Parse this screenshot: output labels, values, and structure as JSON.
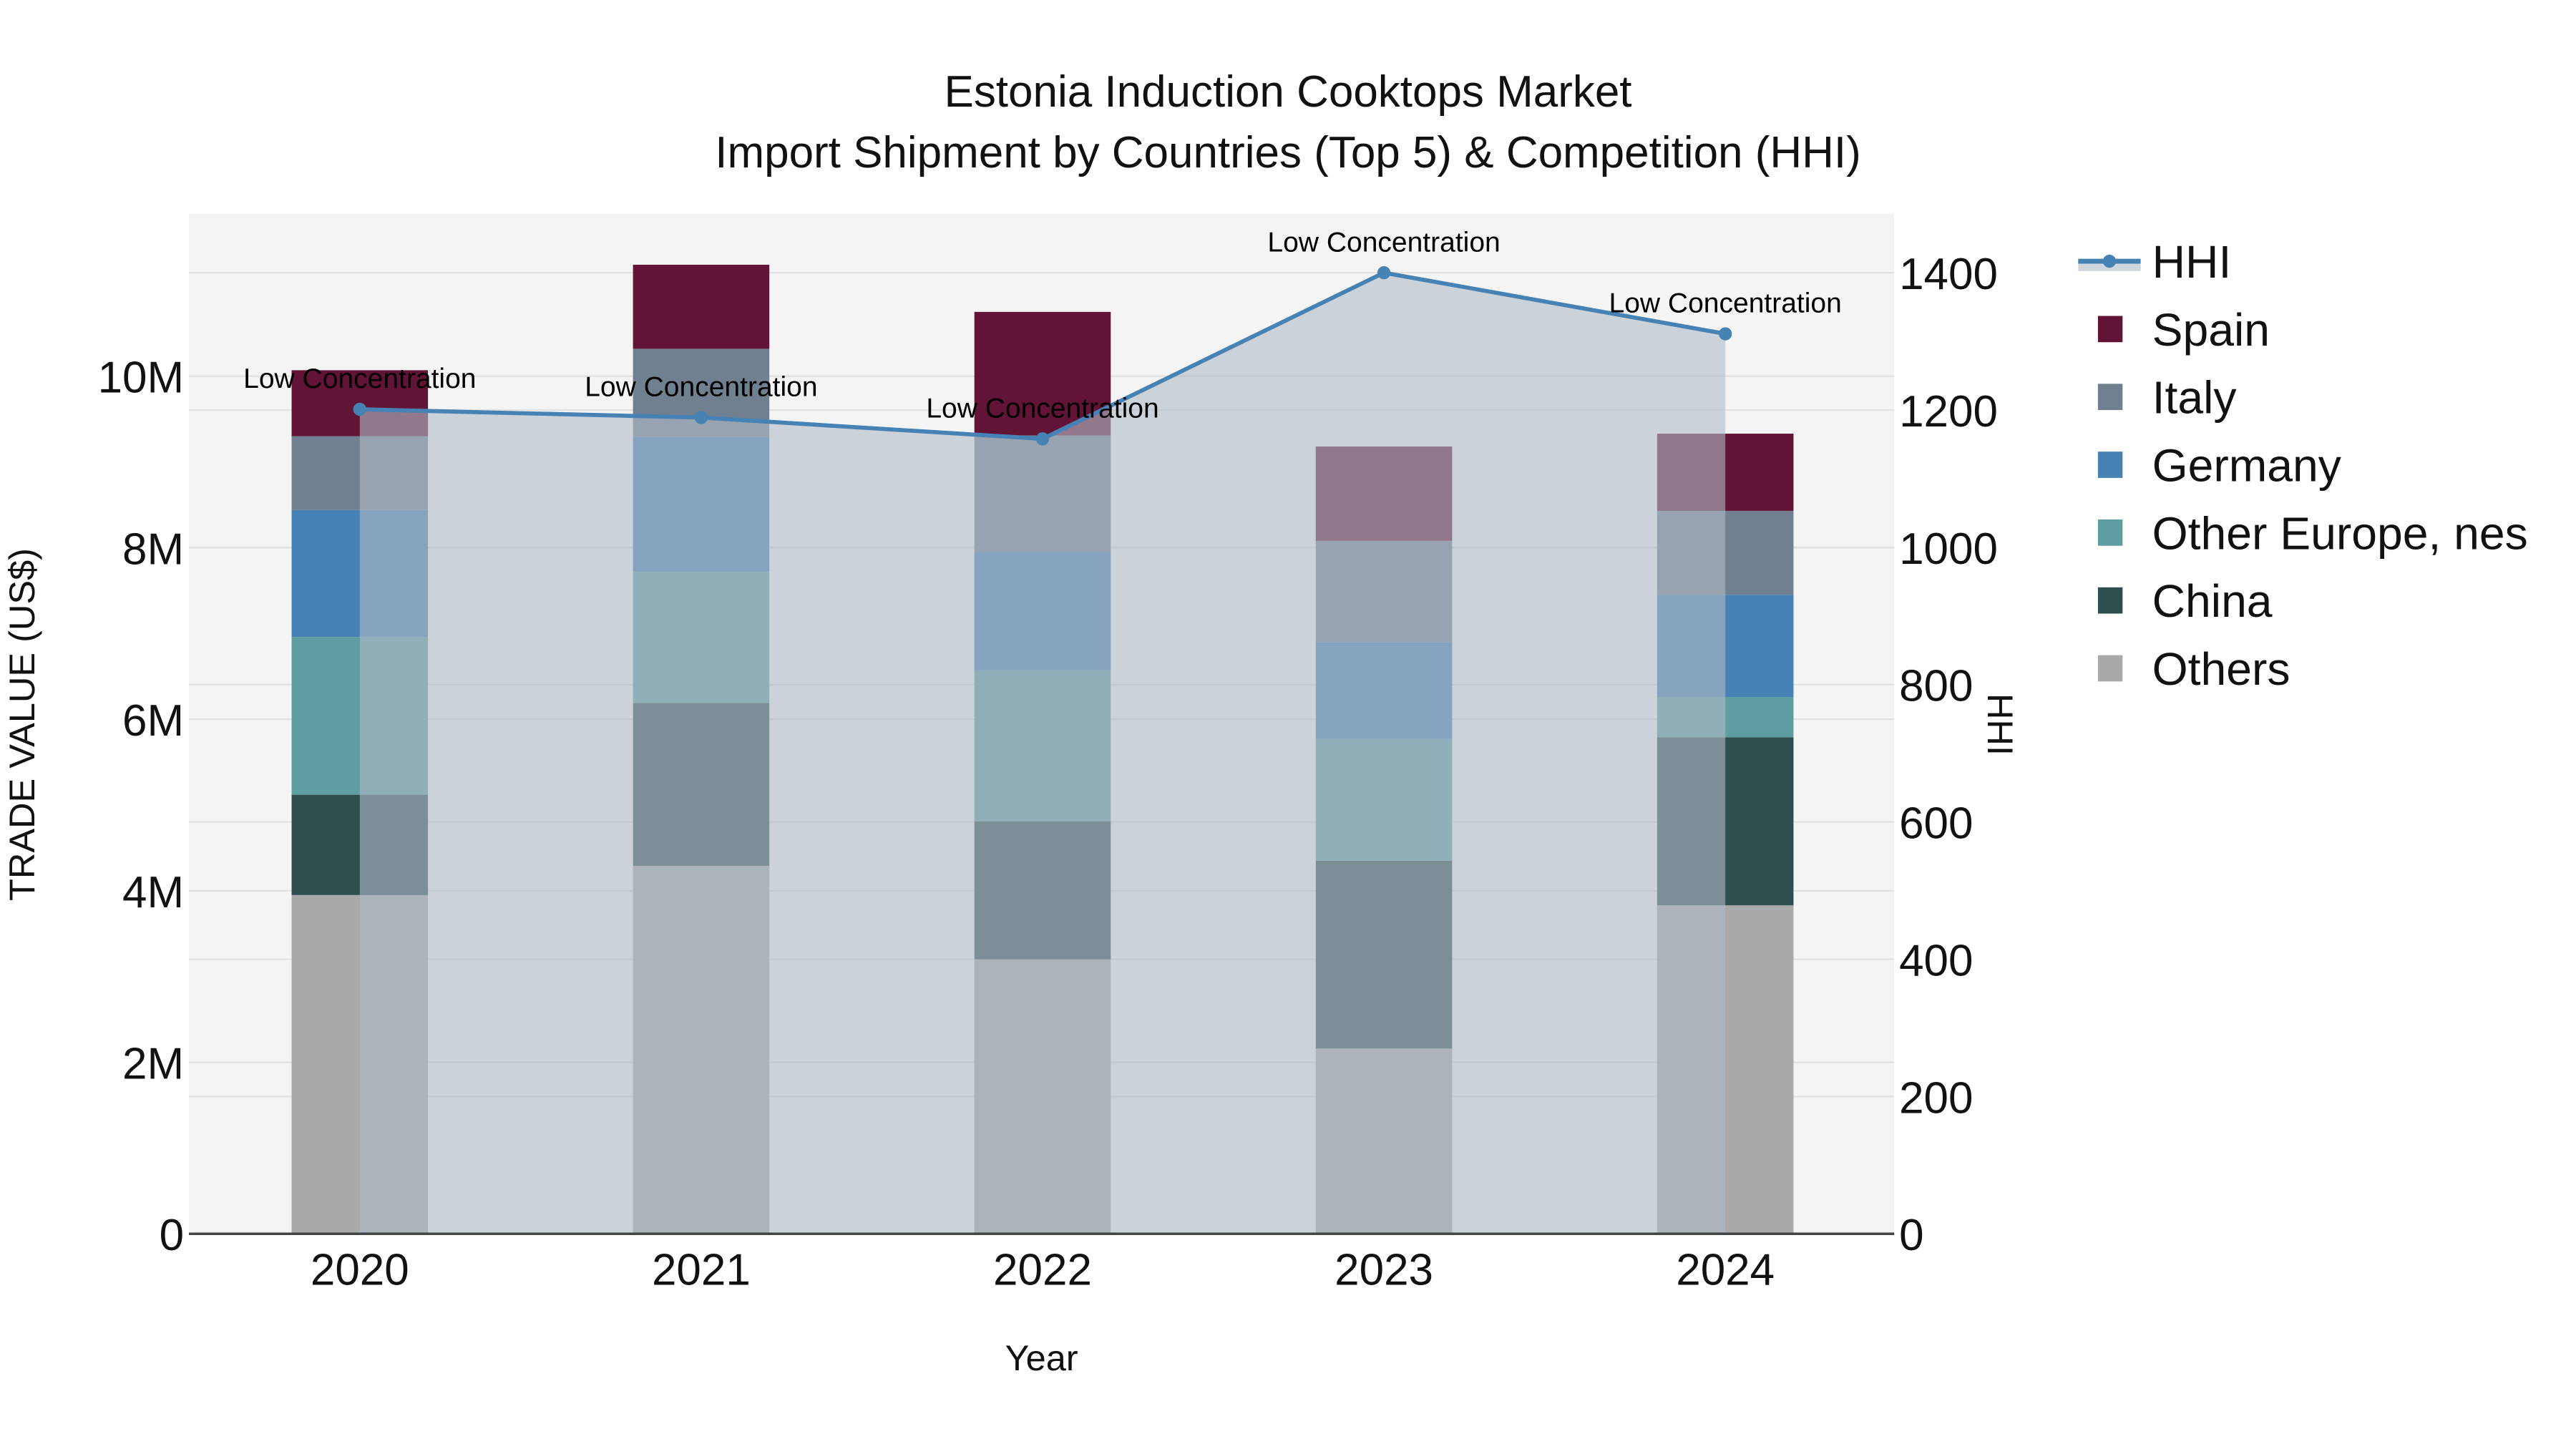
{
  "chart_data": {
    "type": "bar",
    "title": "Estonia Induction Cooktops Market",
    "subtitle": "Import Shipment by Countries (Top 5) & Competition (HHI)",
    "xlabel": "Year",
    "ylabel": "TRADE VALUE (US$)",
    "y2label": "HHI",
    "categories": [
      "2020",
      "2021",
      "2022",
      "2023",
      "2024"
    ],
    "ylim": [
      0,
      11900000
    ],
    "y2lim": [
      0,
      1487
    ],
    "yticks": [
      {
        "v": 0,
        "label": "0"
      },
      {
        "v": 2000000,
        "label": "2M"
      },
      {
        "v": 4000000,
        "label": "4M"
      },
      {
        "v": 6000000,
        "label": "6M"
      },
      {
        "v": 8000000,
        "label": "8M"
      },
      {
        "v": 10000000,
        "label": "10M"
      }
    ],
    "y2ticks": [
      {
        "v": 0,
        "label": "0"
      },
      {
        "v": 200,
        "label": "200"
      },
      {
        "v": 400,
        "label": "400"
      },
      {
        "v": 600,
        "label": "600"
      },
      {
        "v": 800,
        "label": "800"
      },
      {
        "v": 1000,
        "label": "1000"
      },
      {
        "v": 1200,
        "label": "1200"
      },
      {
        "v": 1400,
        "label": "1400"
      }
    ],
    "stacking": "stacked",
    "series": [
      {
        "name": "Others",
        "color": "#A9A9A9",
        "values": [
          3950000,
          4290000,
          3200000,
          2160000,
          3830000
        ]
      },
      {
        "name": "China",
        "color": "#2F4F4F",
        "values": [
          1170000,
          1900000,
          1610000,
          2190000,
          1960000
        ]
      },
      {
        "name": "Other Europe, nes",
        "color": "#5F9EA0",
        "values": [
          1840000,
          1530000,
          1760000,
          1420000,
          470000
        ]
      },
      {
        "name": "Germany",
        "color": "#4682B4",
        "values": [
          1480000,
          1570000,
          1380000,
          1130000,
          1190000
        ]
      },
      {
        "name": "Italy",
        "color": "#708090",
        "values": [
          860000,
          1030000,
          1360000,
          1180000,
          980000
        ]
      },
      {
        "name": "Spain",
        "color": "#621436",
        "values": [
          770000,
          980000,
          1440000,
          1100000,
          900000
        ]
      }
    ],
    "line_series": {
      "name": "HHI",
      "axis": "y2",
      "color": "#4682B4",
      "fill": "rgba(176,186,200,0.6)",
      "values": [
        1201,
        1189,
        1158,
        1400,
        1311
      ],
      "annotations": [
        "Low Concentration",
        "Low Concentration",
        "Low Concentration",
        "Low Concentration",
        "Low Concentration"
      ]
    },
    "legend": {
      "position": "right",
      "items": [
        "HHI",
        "Spain",
        "Italy",
        "Germany",
        "Other Europe, nes",
        "China",
        "Others"
      ]
    },
    "grid": true,
    "plot_bg": "#F4F4F4"
  }
}
